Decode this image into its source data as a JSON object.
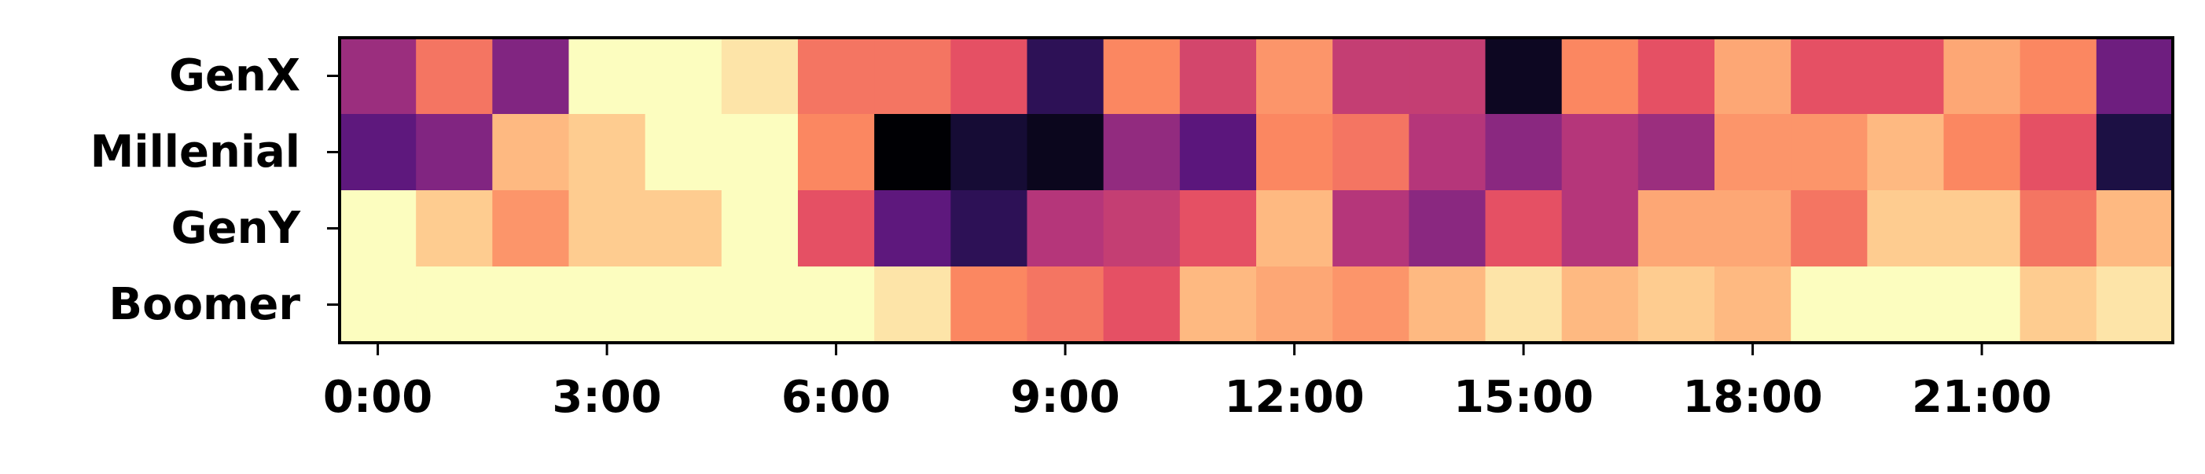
{
  "chart_data": {
    "type": "heatmap",
    "title": "",
    "xlabel": "",
    "ylabel": "",
    "colormap": "magma",
    "value_range": [
      0,
      1
    ],
    "rows": [
      "GenX",
      "Millenial",
      "GenY",
      "Boomer"
    ],
    "columns": [
      "0:00",
      "1:00",
      "2:00",
      "3:00",
      "4:00",
      "5:00",
      "6:00",
      "7:00",
      "8:00",
      "9:00",
      "10:00",
      "11:00",
      "12:00",
      "13:00",
      "14:00",
      "15:00",
      "16:00",
      "17:00",
      "18:00",
      "19:00",
      "20:00",
      "21:00",
      "22:00",
      "23:00"
    ],
    "x_tick_labels": [
      "0:00",
      "3:00",
      "6:00",
      "9:00",
      "12:00",
      "15:00",
      "18:00",
      "21:00"
    ],
    "values": [
      [
        0.44,
        0.71,
        0.38,
        1.0,
        1.0,
        0.95,
        0.71,
        0.71,
        0.63,
        0.17,
        0.75,
        0.58,
        0.78,
        0.54,
        0.54,
        0.06,
        0.75,
        0.63,
        0.82,
        0.63,
        0.63,
        0.82,
        0.75,
        0.33
      ],
      [
        0.29,
        0.38,
        0.86,
        0.9,
        1.0,
        1.0,
        0.75,
        0.0,
        0.1,
        0.05,
        0.42,
        0.28,
        0.75,
        0.71,
        0.5,
        0.4,
        0.5,
        0.44,
        0.78,
        0.78,
        0.86,
        0.75,
        0.63,
        0.13
      ],
      [
        1.0,
        0.9,
        0.78,
        0.9,
        0.9,
        1.0,
        0.63,
        0.29,
        0.17,
        0.5,
        0.54,
        0.63,
        0.86,
        0.5,
        0.4,
        0.63,
        0.5,
        0.82,
        0.82,
        0.71,
        0.9,
        0.9,
        0.71,
        0.86
      ],
      [
        1.0,
        1.0,
        1.0,
        1.0,
        1.0,
        1.0,
        1.0,
        0.95,
        0.75,
        0.71,
        0.63,
        0.86,
        0.82,
        0.78,
        0.86,
        0.95,
        0.86,
        0.9,
        0.86,
        1.0,
        1.0,
        1.0,
        0.9,
        0.95
      ]
    ]
  }
}
